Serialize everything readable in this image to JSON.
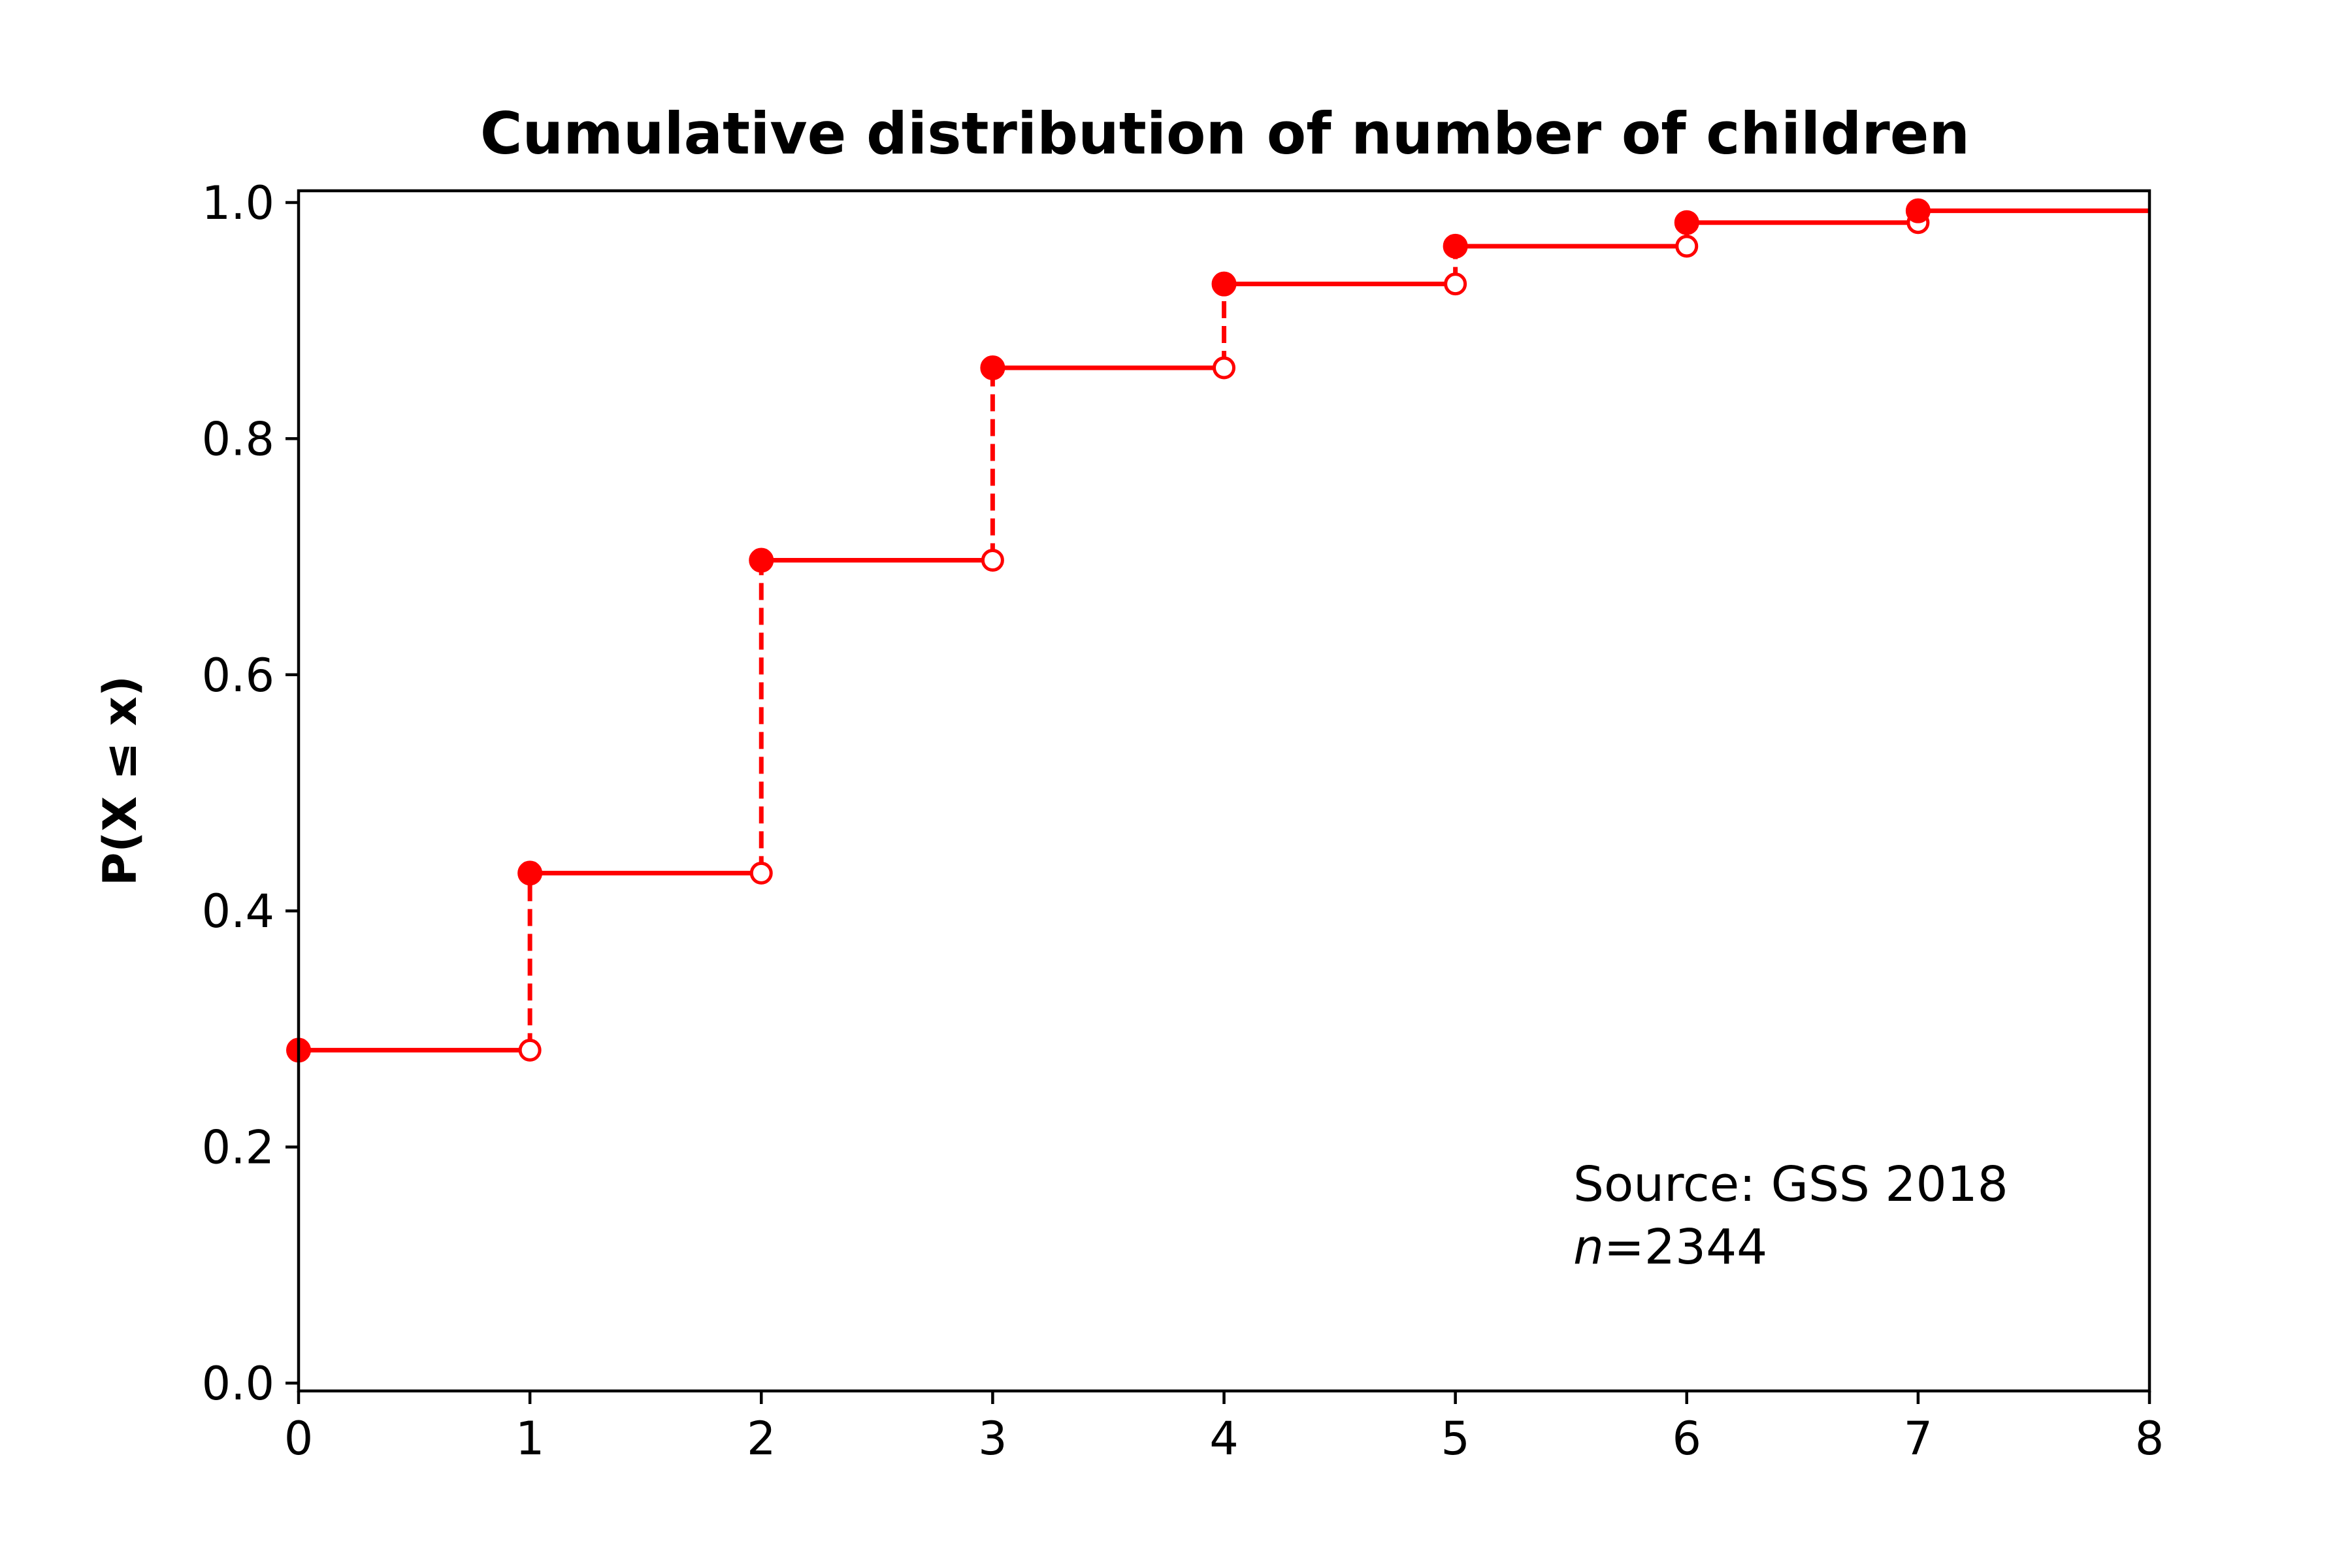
{
  "chart_data": {
    "type": "line",
    "subtype": "step-cdf",
    "title": "Cumulative distribution of number of children",
    "xlabel": "",
    "ylabel": "P(X ≤ x)",
    "xlim": [
      0,
      8
    ],
    "ylim": [
      0.0,
      1.0
    ],
    "x_ticks": [
      "0",
      "1",
      "2",
      "3",
      "4",
      "5",
      "6",
      "7",
      "8"
    ],
    "y_ticks": [
      "0.0",
      "0.2",
      "0.4",
      "0.6",
      "0.8",
      "1.0"
    ],
    "grid": false,
    "color": "#ff0000",
    "points": [
      {
        "x": 0,
        "y": 0.282
      },
      {
        "x": 1,
        "y": 0.432
      },
      {
        "x": 2,
        "y": 0.697
      },
      {
        "x": 3,
        "y": 0.86
      },
      {
        "x": 4,
        "y": 0.931
      },
      {
        "x": 5,
        "y": 0.963
      },
      {
        "x": 6,
        "y": 0.983
      },
      {
        "x": 7,
        "y": 0.993
      }
    ],
    "annotation": {
      "source": "Source: GSS 2018",
      "n_symbol": "n",
      "n_value": "=2344"
    }
  }
}
